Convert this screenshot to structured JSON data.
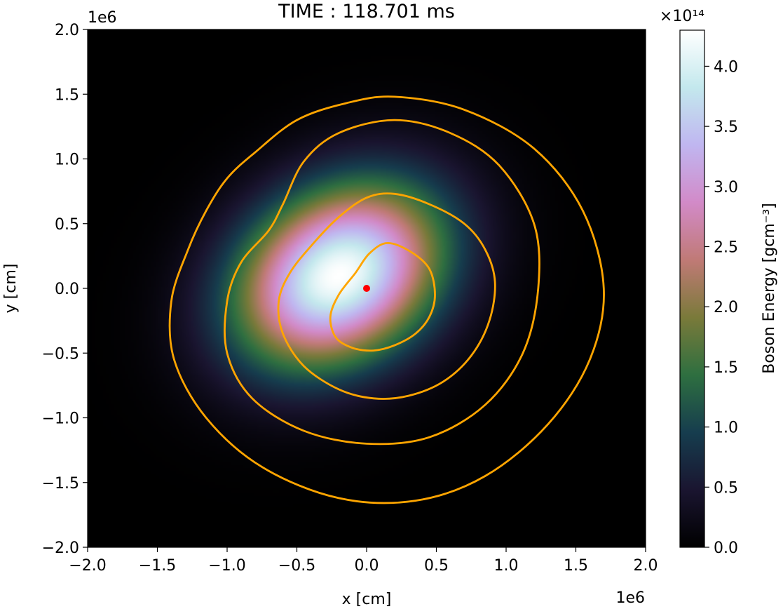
{
  "chart_data": {
    "type": "heatmap",
    "title": "TIME : 118.701 ms",
    "xlabel": "x [cm]",
    "ylabel": "y [cm]",
    "x_scale_label": "1e6",
    "y_scale_label": "1e6",
    "xlim": [
      -2000000,
      2000000
    ],
    "ylim": [
      -2000000,
      2000000
    ],
    "x_ticks": [
      -2.0,
      -1.5,
      -1.0,
      -0.5,
      0.0,
      0.5,
      1.0,
      1.5,
      2.0
    ],
    "y_ticks": [
      -2.0,
      -1.5,
      -1.0,
      -0.5,
      0.0,
      0.5,
      1.0,
      1.5,
      2.0
    ],
    "x_tick_labels": [
      "−2.0",
      "−1.5",
      "−1.0",
      "−0.5",
      "0.0",
      "0.5",
      "1.0",
      "1.5",
      "2.0"
    ],
    "y_tick_labels": [
      "−2.0",
      "−1.5",
      "−1.0",
      "−0.5",
      "0.0",
      "0.5",
      "1.0",
      "1.5",
      "2.0"
    ],
    "colorbar": {
      "label": "Boson Energy [gcm⁻³]",
      "scale_label": "×10¹⁴",
      "range": [
        0,
        430000000000000
      ],
      "ticks": [
        0.0,
        0.5,
        1.0,
        1.5,
        2.0,
        2.5,
        3.0,
        3.5,
        4.0
      ],
      "tick_labels": [
        "0.0",
        "0.5",
        "1.0",
        "1.5",
        "2.0",
        "2.5",
        "3.0",
        "3.5",
        "4.0"
      ],
      "colormap": "cubehelix",
      "stops": [
        "#000000",
        "#1a1530",
        "#163d4e",
        "#2e6f40",
        "#7a7a3a",
        "#c07a76",
        "#d28ac8",
        "#c0b6f0",
        "#c3e8ed",
        "#ffffff"
      ]
    },
    "field": {
      "peak_value": 430000000000000,
      "peak_center": [
        -200000,
        100000
      ],
      "sigma_major": 560000,
      "sigma_minor": 430000,
      "rotation_deg": 40
    },
    "contour_color": "#ffa500",
    "contours": [
      [
        [
          0.15,
          0.35
        ],
        [
          0.32,
          0.28
        ],
        [
          0.45,
          0.15
        ],
        [
          0.49,
          -0.05
        ],
        [
          0.45,
          -0.22
        ],
        [
          0.35,
          -0.35
        ],
        [
          0.2,
          -0.44
        ],
        [
          0.05,
          -0.48
        ],
        [
          -0.1,
          -0.46
        ],
        [
          -0.22,
          -0.38
        ],
        [
          -0.26,
          -0.22
        ],
        [
          -0.2,
          -0.05
        ],
        [
          -0.08,
          0.12
        ],
        [
          0.02,
          0.27
        ]
      ],
      [
        [
          0.2,
          0.73
        ],
        [
          0.45,
          0.65
        ],
        [
          0.7,
          0.5
        ],
        [
          0.85,
          0.3
        ],
        [
          0.92,
          0.05
        ],
        [
          0.88,
          -0.25
        ],
        [
          0.75,
          -0.52
        ],
        [
          0.55,
          -0.72
        ],
        [
          0.3,
          -0.83
        ],
        [
          0.05,
          -0.85
        ],
        [
          -0.2,
          -0.78
        ],
        [
          -0.45,
          -0.6
        ],
        [
          -0.6,
          -0.35
        ],
        [
          -0.63,
          -0.1
        ],
        [
          -0.55,
          0.12
        ],
        [
          -0.38,
          0.35
        ],
        [
          -0.2,
          0.55
        ],
        [
          0.0,
          0.7
        ]
      ],
      [
        [
          0.2,
          1.3
        ],
        [
          0.6,
          1.2
        ],
        [
          0.95,
          0.95
        ],
        [
          1.2,
          0.5
        ],
        [
          1.23,
          0.0
        ],
        [
          1.12,
          -0.5
        ],
        [
          0.85,
          -0.9
        ],
        [
          0.45,
          -1.15
        ],
        [
          0.0,
          -1.2
        ],
        [
          -0.45,
          -1.1
        ],
        [
          -0.82,
          -0.85
        ],
        [
          -1.0,
          -0.5
        ],
        [
          -1.0,
          -0.1
        ],
        [
          -0.9,
          0.2
        ],
        [
          -0.7,
          0.45
        ],
        [
          -0.6,
          0.65
        ],
        [
          -0.45,
          0.98
        ],
        [
          -0.2,
          1.2
        ]
      ],
      [
        [
          0.2,
          1.48
        ],
        [
          0.7,
          1.38
        ],
        [
          1.2,
          1.08
        ],
        [
          1.55,
          0.6
        ],
        [
          1.7,
          0.0
        ],
        [
          1.6,
          -0.55
        ],
        [
          1.3,
          -1.05
        ],
        [
          0.85,
          -1.45
        ],
        [
          0.35,
          -1.64
        ],
        [
          -0.2,
          -1.62
        ],
        [
          -0.75,
          -1.38
        ],
        [
          -1.15,
          -1.0
        ],
        [
          -1.38,
          -0.55
        ],
        [
          -1.4,
          -0.1
        ],
        [
          -1.28,
          0.3
        ],
        [
          -1.15,
          0.6
        ],
        [
          -1.0,
          0.85
        ],
        [
          -0.8,
          1.05
        ],
        [
          -0.5,
          1.3
        ],
        [
          -0.15,
          1.43
        ]
      ]
    ],
    "marker": {
      "x": 0,
      "y": 0,
      "color": "#ff0000"
    },
    "grid": false,
    "legend": "none"
  }
}
